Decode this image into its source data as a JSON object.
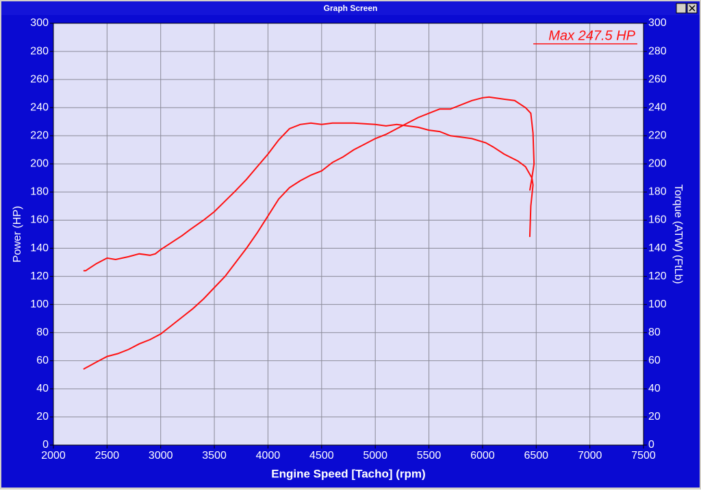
{
  "window": {
    "title": "Graph Screen"
  },
  "chart_data": {
    "type": "line",
    "annotation": "Max 247.5 HP",
    "x_label": "Engine Speed [Tacho] (rpm)",
    "y_label": "Power (HP)",
    "y2_label": "Torque (ATW) (FtLb)",
    "xlim": [
      2000,
      7500
    ],
    "xticks": [
      2000,
      2500,
      3000,
      3500,
      4000,
      4500,
      5000,
      5500,
      6000,
      6500,
      7000,
      7500
    ],
    "ylim": [
      0,
      300
    ],
    "yticks": [
      0,
      20,
      40,
      60,
      80,
      100,
      120,
      140,
      160,
      180,
      200,
      220,
      240,
      260,
      280,
      300
    ],
    "y2lim": [
      0,
      300
    ],
    "y2ticks": [
      0,
      20,
      40,
      60,
      80,
      100,
      120,
      140,
      160,
      180,
      200,
      220,
      240,
      260,
      280,
      300
    ],
    "grid": true,
    "series": [
      {
        "color": "#ff1010",
        "x": [
          2280,
          2400,
          2500,
          2600,
          2700,
          2800,
          2900,
          3000,
          3100,
          3200,
          3300,
          3400,
          3500,
          3600,
          3700,
          3800,
          3900,
          4000,
          4100,
          4200,
          4300,
          4400,
          4500,
          4600,
          4700,
          4800,
          4900,
          5000,
          5100,
          5200,
          5300,
          5400,
          5500,
          5600,
          5700,
          5800,
          5900,
          6000,
          6060,
          6200,
          6300,
          6400,
          6450,
          6470,
          6480,
          6460,
          6440
        ],
        "values": [
          54,
          59,
          63,
          65,
          68,
          72,
          75,
          79,
          85,
          91,
          97,
          104,
          112,
          120,
          130,
          140,
          151,
          163,
          175,
          183,
          188,
          192,
          195,
          201,
          205,
          210,
          214,
          218,
          221,
          225,
          229,
          233,
          236,
          239,
          239,
          242,
          245,
          247,
          247.5,
          246,
          245,
          240,
          236,
          222,
          200,
          190,
          181
        ]
      },
      {
        "color": "#ff1010",
        "axis": "y2",
        "x": [
          2280,
          2300,
          2400,
          2500,
          2580,
          2700,
          2800,
          2900,
          2950,
          3000,
          3100,
          3200,
          3270,
          3400,
          3500,
          3580,
          3700,
          3800,
          3900,
          4000,
          4100,
          4200,
          4300,
          4400,
          4500,
          4600,
          4800,
          5000,
          5100,
          5200,
          5300,
          5400,
          5500,
          5600,
          5700,
          5800,
          5900,
          6030,
          6100,
          6200,
          6330,
          6400,
          6460,
          6470,
          6450,
          6440
        ],
        "values": [
          124,
          124,
          129,
          133,
          132,
          134,
          136,
          135,
          136,
          139,
          144,
          149,
          153,
          160,
          166,
          172,
          181,
          189,
          198,
          207,
          217,
          225,
          228,
          229,
          228,
          229,
          229,
          228,
          227,
          228,
          227,
          226,
          224,
          223,
          220,
          219,
          218,
          215,
          212,
          207,
          202,
          198,
          190,
          185,
          170,
          148
        ]
      }
    ]
  }
}
